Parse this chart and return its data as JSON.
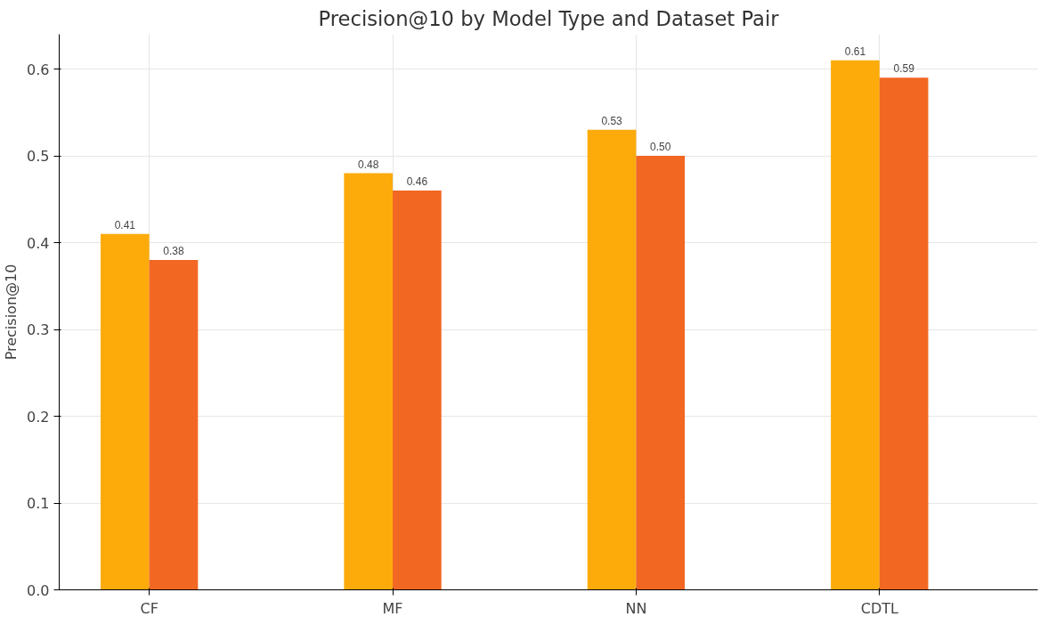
{
  "chart_data": {
    "type": "bar",
    "title": "Precision@10 by Model Type and Dataset Pair",
    "ylabel": "Precision@10",
    "categories": [
      "CF",
      "MF",
      "NN",
      "CDTL"
    ],
    "series": [
      {
        "color": "#fcab0a",
        "values": [
          0.41,
          0.48,
          0.53,
          0.61
        ],
        "value_labels": [
          "0.41",
          "0.48",
          "0.53",
          "0.61"
        ]
      },
      {
        "color": "#f26722",
        "values": [
          0.38,
          0.46,
          0.5,
          0.59
        ],
        "value_labels": [
          "0.38",
          "0.46",
          "0.50",
          "0.59"
        ]
      }
    ],
    "ylim": [
      0,
      0.64
    ],
    "yticks": [
      {
        "value": 0,
        "label": "0.0"
      },
      0.1,
      0.2,
      0.3,
      0.4,
      0.5,
      0.6
    ],
    "grid": true
  }
}
